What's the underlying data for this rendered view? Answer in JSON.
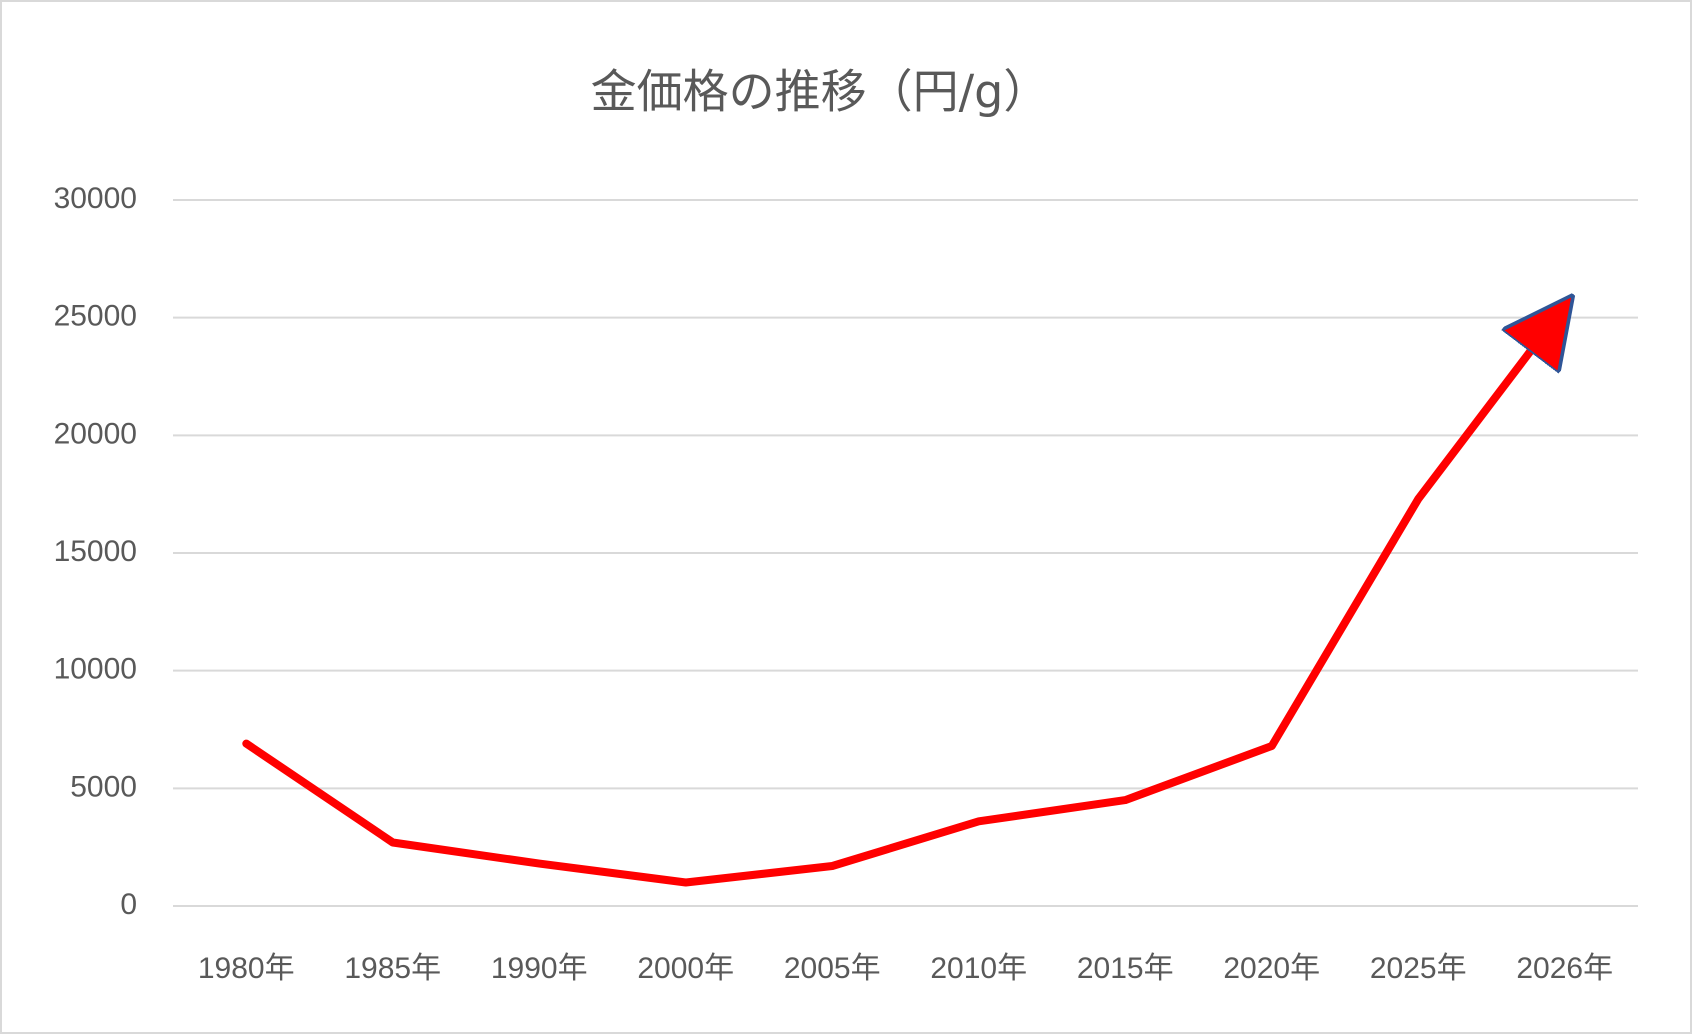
{
  "chart_data": {
    "type": "line",
    "title": "金価格の推移（円/g）",
    "categories": [
      "1980年",
      "1985年",
      "1990年",
      "2000年",
      "2005年",
      "2010年",
      "2015年",
      "2020年",
      "2025年",
      "2026年"
    ],
    "values": [
      6900,
      2700,
      1800,
      1000,
      1700,
      3600,
      4500,
      6800,
      17300,
      25500
    ],
    "color": "#ff0000",
    "ylim": [
      0,
      30000
    ],
    "yticks": [
      0,
      5000,
      10000,
      15000,
      20000,
      25000,
      30000
    ],
    "grid": true
  }
}
